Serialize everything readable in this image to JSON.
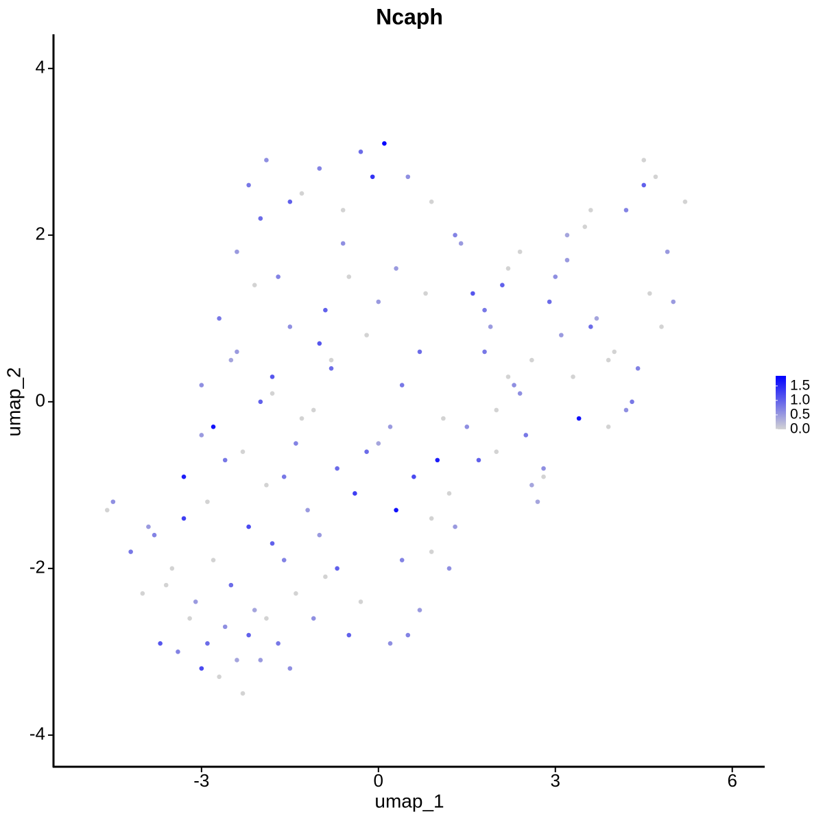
{
  "chart_data": {
    "type": "scatter",
    "title": "Ncaph",
    "x_label": "umap_1",
    "y_label": "umap_2",
    "xlim": [
      -5.51,
      6.55
    ],
    "ylim": [
      -4.38,
      4.41
    ],
    "xticks": [
      -3,
      0,
      3,
      6
    ],
    "yticks": [
      -4,
      -2,
      0,
      2,
      4
    ],
    "low_color": "#d3d3d3",
    "high_color": "#0000ff",
    "colorbar_lim": [
      0,
      1.85
    ],
    "colorbar_ticks": [
      {
        "value": 0,
        "label": "0.0"
      },
      0.5,
      {
        "value": 1,
        "label": "1.0"
      },
      1.5
    ],
    "x": [
      -4.6,
      -4.5,
      -4.2,
      -4.0,
      -3.9,
      -3.7,
      -3.6,
      -3.4,
      -3.2,
      -3.0,
      -2.9,
      -2.7,
      -2.6,
      -2.4,
      -2.3,
      -2.2,
      -2.0,
      -1.9,
      -1.7,
      -1.5,
      -3.8,
      -3.5,
      -3.3,
      -3.1,
      -2.8,
      -2.5,
      -2.1,
      -1.8,
      -1.4,
      -1.1,
      -3.3,
      -3.0,
      -2.9,
      -2.6,
      -2.2,
      -1.9,
      -1.6,
      -1.2,
      -0.9,
      -0.5,
      -3.0,
      -2.8,
      -2.5,
      -2.3,
      -2.0,
      -1.6,
      -1.3,
      -1.0,
      -0.7,
      -0.3,
      -2.7,
      -2.4,
      -2.1,
      -1.8,
      -1.5,
      -1.1,
      -0.8,
      -0.4,
      0.0,
      0.4,
      -2.4,
      -2.0,
      -1.7,
      -1.3,
      -0.9,
      -0.6,
      -0.2,
      0.2,
      0.6,
      0.9,
      -2.2,
      -1.9,
      -1.5,
      -1.0,
      -0.6,
      -0.1,
      0.3,
      0.7,
      1.1,
      1.2,
      -1.8,
      -1.4,
      -1.0,
      -0.5,
      0.0,
      0.4,
      0.8,
      1.0,
      0.2,
      -0.7,
      -0.3,
      0.1,
      0.5,
      0.9,
      1.3,
      1.6,
      1.9,
      2.2,
      2.5,
      2.8,
      -0.8,
      -0.2,
      0.3,
      0.7,
      1.2,
      1.5,
      1.8,
      2.1,
      2.4,
      2.7,
      0.5,
      0.9,
      1.3,
      1.7,
      2.0,
      2.3,
      2.6,
      2.9,
      3.2,
      3.5,
      1.4,
      1.8,
      2.2,
      2.6,
      3.0,
      3.3,
      3.6,
      3.9,
      4.2,
      4.5,
      2.0,
      2.4,
      2.8,
      3.1,
      3.4,
      3.7,
      4.0,
      4.3,
      4.6,
      4.9,
      3.2,
      3.6,
      3.9,
      4.2,
      4.5,
      4.7,
      5.0,
      5.2,
      4.4,
      4.8
    ],
    "y": [
      -1.3,
      -1.2,
      -1.8,
      -2.3,
      -1.5,
      -2.9,
      -2.2,
      -3.0,
      -2.6,
      -3.2,
      -2.9,
      -3.3,
      -2.7,
      -3.1,
      -3.5,
      -2.8,
      -3.1,
      -2.6,
      -2.9,
      -3.2,
      -1.6,
      -2.0,
      -1.4,
      -2.4,
      -1.9,
      -2.2,
      -2.5,
      -1.7,
      -2.3,
      -2.6,
      -0.9,
      -0.4,
      -1.2,
      -0.7,
      -1.5,
      -1.0,
      -1.9,
      -1.3,
      -2.1,
      -2.8,
      0.2,
      -0.3,
      0.5,
      -0.6,
      0.0,
      -0.9,
      -0.2,
      -1.6,
      -0.8,
      -2.4,
      1.0,
      0.6,
      1.4,
      0.3,
      0.9,
      -0.1,
      0.4,
      -1.1,
      -0.5,
      -1.9,
      1.8,
      2.2,
      1.5,
      2.5,
      1.1,
      1.9,
      0.8,
      -0.3,
      -0.9,
      -1.4,
      2.6,
      2.9,
      2.4,
      2.8,
      2.3,
      2.7,
      1.6,
      0.6,
      -0.2,
      -2.0,
      0.1,
      -0.5,
      0.7,
      1.5,
      1.2,
      0.2,
      1.3,
      -0.7,
      -2.9,
      -2.0,
      3.0,
      3.1,
      2.7,
      2.4,
      2.0,
      1.3,
      0.9,
      0.3,
      -0.4,
      -0.8,
      0.5,
      -0.6,
      -1.3,
      -2.5,
      -1.1,
      -0.3,
      0.6,
      1.4,
      1.8,
      -1.2,
      -2.8,
      -1.8,
      -1.5,
      -0.7,
      -0.1,
      0.2,
      0.5,
      1.2,
      1.7,
      2.1,
      1.9,
      1.1,
      1.6,
      -1.0,
      1.5,
      0.3,
      0.9,
      -0.3,
      2.3,
      2.6,
      -0.6,
      0.1,
      -0.9,
      0.8,
      -0.2,
      1.0,
      0.6,
      0.0,
      1.3,
      1.8,
      2.0,
      2.3,
      0.5,
      -0.1,
      2.9,
      2.7,
      1.2,
      2.4,
      0.4,
      0.9
    ],
    "expression": [
      0,
      0.6,
      0.8,
      0,
      0.5,
      1.1,
      0,
      0.7,
      0,
      1.2,
      0.9,
      0,
      0.6,
      0.4,
      0,
      1.0,
      0.5,
      0,
      0.8,
      0.6,
      0.7,
      0,
      1.3,
      0.5,
      0,
      0.9,
      0.4,
      1.0,
      0,
      0.6,
      1.6,
      0.5,
      0,
      0.8,
      1.2,
      0,
      0.7,
      0.5,
      0,
      1.0,
      0.6,
      1.7,
      0.4,
      0,
      1.0,
      0.8,
      0,
      0.5,
      0.9,
      0,
      0.8,
      0.5,
      0,
      1.1,
      0.6,
      0,
      0.9,
      1.3,
      0.4,
      0.7,
      0.5,
      0.9,
      0.7,
      0,
      1.0,
      0.6,
      0,
      0.5,
      1.2,
      0,
      0.8,
      0.6,
      1.0,
      0.7,
      0,
      1.4,
      0.5,
      0.9,
      0,
      0.6,
      0,
      0.7,
      1.1,
      0,
      0.5,
      0.8,
      0,
      1.6,
      0.6,
      1.0,
      0.9,
      1.8,
      0.6,
      0,
      0.7,
      1.1,
      0.5,
      0,
      0.8,
      0.6,
      0,
      0.9,
      1.7,
      0.5,
      0,
      0.6,
      0.8,
      1.0,
      0,
      0.4,
      0.7,
      0,
      0.5,
      1.0,
      0,
      0.6,
      0,
      0.9,
      0.5,
      0,
      0.5,
      0.8,
      0,
      0.4,
      0.6,
      0,
      0.9,
      0,
      0.7,
      1.0,
      0,
      0.6,
      0,
      0.5,
      1.7,
      0.4,
      0,
      0.8,
      0,
      0.5,
      0.4,
      0,
      0,
      0.6,
      0,
      0,
      0.5,
      0,
      0.7,
      0
    ]
  }
}
